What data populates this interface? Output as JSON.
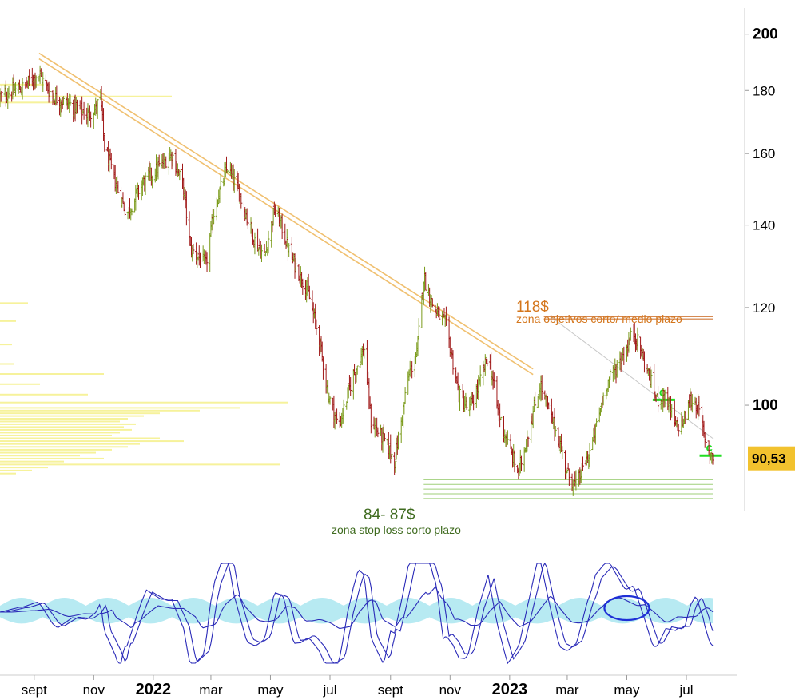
{
  "colors": {
    "bar_up": "#7a9a1a",
    "bar_down": "#a01818",
    "trendline": "#f0c070",
    "resistance": "#d07a3a",
    "resistance_text": "#d4761c",
    "support": "#9fcf7a",
    "support_text": "#3f6b1f",
    "volume_profile": "#f5f08a",
    "price_badge": "#f2c22e",
    "osc_band": "#9fe3ee",
    "osc_line": "#2a2ab8",
    "marker": "#22dd22"
  },
  "chart_data": {
    "type": "ohlc",
    "y_scale": "log",
    "ylim": [
      82,
      210
    ],
    "y_ticks": [
      "200",
      "180",
      "160",
      "140",
      "120",
      "100",
      "90,53"
    ],
    "y_tick_values": [
      200,
      180,
      160,
      140,
      120,
      100,
      90.53
    ],
    "last_price_label": "90,53",
    "last_price": 90.53,
    "x_ticks": [
      "sept",
      "nov",
      "2022",
      "mar",
      "may",
      "jul",
      "sept",
      "nov",
      "2023",
      "mar",
      "may",
      "jul"
    ],
    "x_tick_dates": [
      "2021-09-01",
      "2021-11-01",
      "2022-01-01",
      "2022-03-01",
      "2022-05-01",
      "2022-07-01",
      "2022-09-01",
      "2022-11-01",
      "2023-01-01",
      "2023-03-01",
      "2023-05-01",
      "2023-07-01"
    ],
    "x_range": [
      "2021-07-28",
      "2023-07-28"
    ],
    "price_path": [
      [
        "2021-07-28",
        178
      ],
      [
        "2021-08-20",
        181
      ],
      [
        "2021-09-05",
        186
      ],
      [
        "2021-09-20",
        178
      ],
      [
        "2021-10-10",
        175
      ],
      [
        "2021-10-25",
        172
      ],
      [
        "2021-11-03",
        174
      ],
      [
        "2021-11-08",
        178
      ],
      [
        "2021-11-12",
        162
      ],
      [
        "2021-11-25",
        150
      ],
      [
        "2021-12-05",
        143
      ],
      [
        "2021-12-20",
        151
      ],
      [
        "2022-01-03",
        155
      ],
      [
        "2022-01-20",
        160
      ],
      [
        "2022-02-01",
        150
      ],
      [
        "2022-02-08",
        134
      ],
      [
        "2022-02-24",
        130
      ],
      [
        "2022-03-05",
        145
      ],
      [
        "2022-03-18",
        156
      ],
      [
        "2022-03-28",
        150
      ],
      [
        "2022-04-15",
        136
      ],
      [
        "2022-04-25",
        132
      ],
      [
        "2022-05-05",
        144
      ],
      [
        "2022-05-12",
        140
      ],
      [
        "2022-05-22",
        132
      ],
      [
        "2022-06-08",
        124
      ],
      [
        "2022-06-20",
        113
      ],
      [
        "2022-06-29",
        102
      ],
      [
        "2022-07-10",
        96
      ],
      [
        "2022-07-25",
        106
      ],
      [
        "2022-08-05",
        111
      ],
      [
        "2022-08-12",
        97
      ],
      [
        "2022-08-28",
        93
      ],
      [
        "2022-09-05",
        90
      ],
      [
        "2022-09-20",
        106
      ],
      [
        "2022-09-28",
        110
      ],
      [
        "2022-10-05",
        127
      ],
      [
        "2022-10-15",
        120
      ],
      [
        "2022-10-28",
        116
      ],
      [
        "2022-11-10",
        102
      ],
      [
        "2022-11-20",
        99
      ],
      [
        "2022-12-01",
        104
      ],
      [
        "2022-12-10",
        110
      ],
      [
        "2022-12-20",
        99
      ],
      [
        "2022-12-30",
        93
      ],
      [
        "2023-01-10",
        88
      ],
      [
        "2023-01-20",
        95
      ],
      [
        "2023-02-01",
        104
      ],
      [
        "2023-02-10",
        99
      ],
      [
        "2023-02-20",
        94
      ],
      [
        "2023-03-01",
        88
      ],
      [
        "2023-03-10",
        86
      ],
      [
        "2023-03-25",
        92
      ],
      [
        "2023-04-10",
        104
      ],
      [
        "2023-04-28",
        110
      ],
      [
        "2023-05-08",
        115
      ],
      [
        "2023-05-18",
        109
      ],
      [
        "2023-06-01",
        101
      ],
      [
        "2023-06-10",
        102
      ],
      [
        "2023-06-20",
        96
      ],
      [
        "2023-06-28",
        97
      ],
      [
        "2023-07-05",
        101
      ],
      [
        "2023-07-12",
        100
      ],
      [
        "2023-07-20",
        94
      ],
      [
        "2023-07-28",
        90.5
      ]
    ],
    "trendline": {
      "from": [
        "2021-09-06",
        193
      ],
      "to": [
        "2023-01-25",
        107
      ]
    },
    "resistance": {
      "value": 118,
      "from": "2023-02-05",
      "to": "2023-07-28",
      "label": "118$",
      "sublabel": "zona objetivos corto/ medio plazo"
    },
    "support": {
      "value_low": 84,
      "value_high": 87,
      "from": "2022-10-05",
      "to": "2023-07-28",
      "label": "84- 87$",
      "sublabel": "zona stop loss corto plazo"
    },
    "markers": [
      {
        "label": "c",
        "date": "2023-06-08",
        "value": 101
      },
      {
        "label": "c",
        "date": "2023-07-26",
        "value": 91
      }
    ]
  }
}
